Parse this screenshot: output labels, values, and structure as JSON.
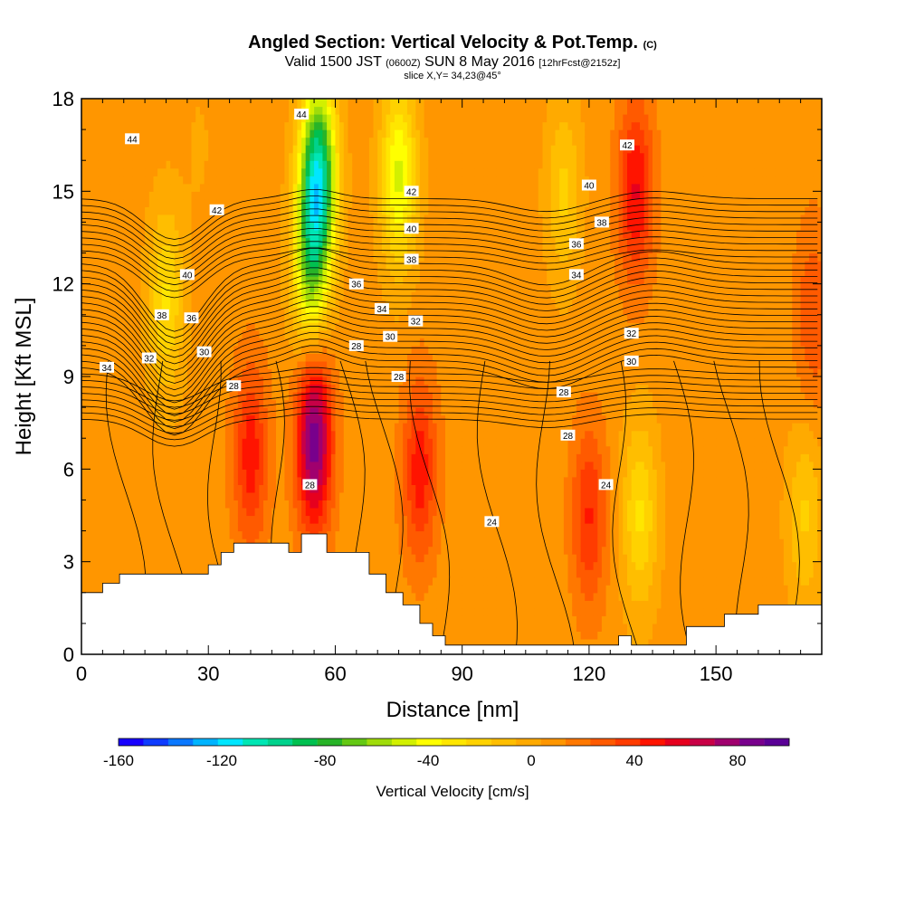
{
  "header": {
    "title_main": "Angled Section: Vertical Velocity & Pot.Temp.",
    "title_unit": "(C)",
    "valid_prefix": "Valid 1500 JST",
    "valid_utc": "(0600Z)",
    "valid_date": "SUN 8 May 2016",
    "valid_fcst": "[12hrFcst@2152z]",
    "slice": "slice X,Y= 34,23@45°"
  },
  "chart_data": {
    "type": "heatmap",
    "xlabel": "Distance [nm]",
    "ylabel": "Height [Kft MSL]",
    "xlim": [
      0,
      175
    ],
    "ylim": [
      0,
      18
    ],
    "x_ticks": [
      0,
      30,
      60,
      90,
      120,
      150
    ],
    "y_ticks": [
      0,
      3,
      6,
      9,
      12,
      15,
      18
    ],
    "colorbar": {
      "label": "Vertical Velocity [cm/s]",
      "range": [
        -160,
        100
      ],
      "tick_values": [
        -160,
        -120,
        -80,
        -40,
        0,
        40,
        80
      ],
      "colors": [
        "#1800ff",
        "#0f3cff",
        "#0a78ff",
        "#00b4ff",
        "#00e6ff",
        "#00e6b4",
        "#00d28c",
        "#00c050",
        "#28b428",
        "#64c814",
        "#a0dc0a",
        "#d2f000",
        "#ffff00",
        "#ffe600",
        "#ffd200",
        "#ffbe00",
        "#ffaa00",
        "#ff9600",
        "#ff7800",
        "#ff5a00",
        "#ff3c00",
        "#ff1400",
        "#e6001e",
        "#c80046",
        "#a0006e",
        "#78008c",
        "#5a0096"
      ]
    },
    "velocity_cores": [
      {
        "x": 28,
        "y": 16.5,
        "w": -5
      },
      {
        "x": 40,
        "y": 6.5,
        "w": 40
      },
      {
        "x": 55,
        "y": 7.0,
        "w": 80
      },
      {
        "x": 56,
        "y": 15.5,
        "w": -110
      },
      {
        "x": 54,
        "y": 12.5,
        "w": -60
      },
      {
        "x": 75,
        "y": 15.5,
        "w": -55
      },
      {
        "x": 80,
        "y": 6.0,
        "w": 40
      },
      {
        "x": 114,
        "y": 15.0,
        "w": -25
      },
      {
        "x": 120,
        "y": 4.5,
        "w": 35
      },
      {
        "x": 131,
        "y": 15.0,
        "w": 45
      },
      {
        "x": 132,
        "y": 4.5,
        "w": -35
      },
      {
        "x": 20,
        "y": 11.5,
        "w": -35
      },
      {
        "x": 173,
        "y": 11.0,
        "w": 25
      },
      {
        "x": 171,
        "y": 4.5,
        "w": -25
      }
    ],
    "terrain": [
      [
        0,
        2.0
      ],
      [
        5,
        2.0
      ],
      [
        5,
        2.3
      ],
      [
        9,
        2.3
      ],
      [
        9,
        2.6
      ],
      [
        30,
        2.6
      ],
      [
        30,
        2.9
      ],
      [
        33,
        2.9
      ],
      [
        33,
        3.3
      ],
      [
        36,
        3.3
      ],
      [
        36,
        3.6
      ],
      [
        49,
        3.6
      ],
      [
        49,
        3.3
      ],
      [
        52,
        3.3
      ],
      [
        52,
        3.9
      ],
      [
        58,
        3.9
      ],
      [
        58,
        3.3
      ],
      [
        68,
        3.3
      ],
      [
        68,
        2.6
      ],
      [
        72,
        2.6
      ],
      [
        72,
        2.0
      ],
      [
        76,
        2.0
      ],
      [
        76,
        1.6
      ],
      [
        80,
        1.6
      ],
      [
        80,
        1.0
      ],
      [
        83,
        1.0
      ],
      [
        83,
        0.6
      ],
      [
        86,
        0.6
      ],
      [
        86,
        0.3
      ],
      [
        127,
        0.3
      ],
      [
        127,
        0.6
      ],
      [
        130,
        0.6
      ],
      [
        130,
        0.3
      ],
      [
        143,
        0.3
      ],
      [
        143,
        0.9
      ],
      [
        152,
        0.9
      ],
      [
        152,
        1.3
      ],
      [
        160,
        1.3
      ],
      [
        160,
        1.6
      ],
      [
        175,
        1.6
      ]
    ],
    "isentrope_labels": [
      {
        "x": 12,
        "y": 16.7,
        "text": "44"
      },
      {
        "x": 52,
        "y": 17.5,
        "text": "44"
      },
      {
        "x": 32,
        "y": 14.4,
        "text": "42"
      },
      {
        "x": 78,
        "y": 15.0,
        "text": "42"
      },
      {
        "x": 129,
        "y": 16.5,
        "text": "42"
      },
      {
        "x": 25,
        "y": 12.3,
        "text": "40"
      },
      {
        "x": 78,
        "y": 13.8,
        "text": "40"
      },
      {
        "x": 120,
        "y": 15.2,
        "text": "40"
      },
      {
        "x": 19,
        "y": 11.0,
        "text": "38"
      },
      {
        "x": 78,
        "y": 12.8,
        "text": "38"
      },
      {
        "x": 123,
        "y": 14.0,
        "text": "38"
      },
      {
        "x": 26,
        "y": 10.9,
        "text": "36"
      },
      {
        "x": 65,
        "y": 12.0,
        "text": "36"
      },
      {
        "x": 117,
        "y": 13.3,
        "text": "36"
      },
      {
        "x": 6,
        "y": 9.3,
        "text": "34"
      },
      {
        "x": 71,
        "y": 11.2,
        "text": "34"
      },
      {
        "x": 117,
        "y": 12.3,
        "text": "34"
      },
      {
        "x": 16,
        "y": 9.6,
        "text": "32"
      },
      {
        "x": 79,
        "y": 10.8,
        "text": "32"
      },
      {
        "x": 130,
        "y": 10.4,
        "text": "32"
      },
      {
        "x": 29,
        "y": 9.8,
        "text": "30"
      },
      {
        "x": 73,
        "y": 10.3,
        "text": "30"
      },
      {
        "x": 130,
        "y": 9.5,
        "text": "30"
      },
      {
        "x": 36,
        "y": 8.7,
        "text": "28"
      },
      {
        "x": 65,
        "y": 10.0,
        "text": "28"
      },
      {
        "x": 75,
        "y": 9.0,
        "text": "28"
      },
      {
        "x": 114,
        "y": 8.5,
        "text": "28"
      },
      {
        "x": 115,
        "y": 7.1,
        "text": "28"
      },
      {
        "x": 54,
        "y": 5.5,
        "text": "28"
      },
      {
        "x": 97,
        "y": 4.3,
        "text": "24"
      },
      {
        "x": 124,
        "y": 5.5,
        "text": "24"
      }
    ]
  }
}
